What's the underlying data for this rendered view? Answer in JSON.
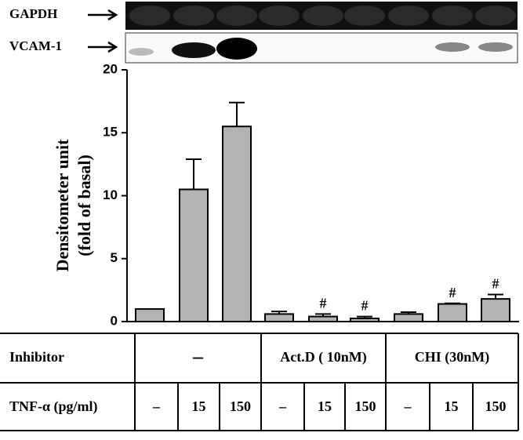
{
  "blot": {
    "rows": [
      "GAPDH",
      "VCAM-1"
    ]
  },
  "chart_data": {
    "type": "bar",
    "ylabel": [
      "Densitometer unit",
      "(fold of basal)"
    ],
    "values": [
      1.0,
      10.5,
      15.5,
      0.6,
      0.4,
      0.25,
      0.6,
      1.4,
      1.8
    ],
    "errors": [
      null,
      2.4,
      1.9,
      0.2,
      0.2,
      0.15,
      0.15,
      0.05,
      0.35
    ],
    "significance": [
      null,
      null,
      null,
      null,
      "#",
      "#",
      null,
      "#",
      "#"
    ],
    "color": "#b3b3b3",
    "ylim": [
      0,
      20
    ],
    "yticks": [
      0,
      5,
      10,
      15,
      20
    ]
  },
  "table": {
    "rows": [
      [
        "Inhibitor",
        "–",
        "Act.D ( 10nM)",
        "CHI (30nM)"
      ],
      [
        "TNF-α (pg/ml)",
        "–",
        "15",
        "150",
        "–",
        "15",
        "150",
        "–",
        "15",
        "150"
      ]
    ]
  }
}
